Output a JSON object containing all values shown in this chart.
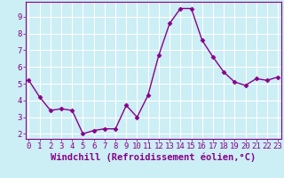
{
  "x": [
    0,
    1,
    2,
    3,
    4,
    5,
    6,
    7,
    8,
    9,
    10,
    11,
    12,
    13,
    14,
    15,
    16,
    17,
    18,
    19,
    20,
    21,
    22,
    23
  ],
  "y": [
    5.2,
    4.2,
    3.4,
    3.5,
    3.4,
    2.0,
    2.2,
    2.3,
    2.3,
    3.7,
    3.0,
    4.3,
    6.7,
    8.6,
    9.5,
    9.5,
    7.6,
    6.6,
    5.7,
    5.1,
    4.9,
    5.3,
    5.2,
    5.4
  ],
  "line_color": "#880088",
  "marker": "D",
  "marker_size": 2.5,
  "line_width": 1.0,
  "xlabel": "Windchill (Refroidissement éolien,°C)",
  "ylabel": "",
  "title": "",
  "xlim": [
    -0.3,
    23.3
  ],
  "ylim": [
    1.7,
    9.9
  ],
  "yticks": [
    2,
    3,
    4,
    5,
    6,
    7,
    8,
    9
  ],
  "xticks": [
    0,
    1,
    2,
    3,
    4,
    5,
    6,
    7,
    8,
    9,
    10,
    11,
    12,
    13,
    14,
    15,
    16,
    17,
    18,
    19,
    20,
    21,
    22,
    23
  ],
  "bg_color": "#cceef5",
  "grid_color": "#ffffff",
  "spine_color": "#880088",
  "tick_color": "#880088",
  "label_color": "#880088",
  "xlabel_fontsize": 7.5,
  "tick_fontsize": 6.5
}
